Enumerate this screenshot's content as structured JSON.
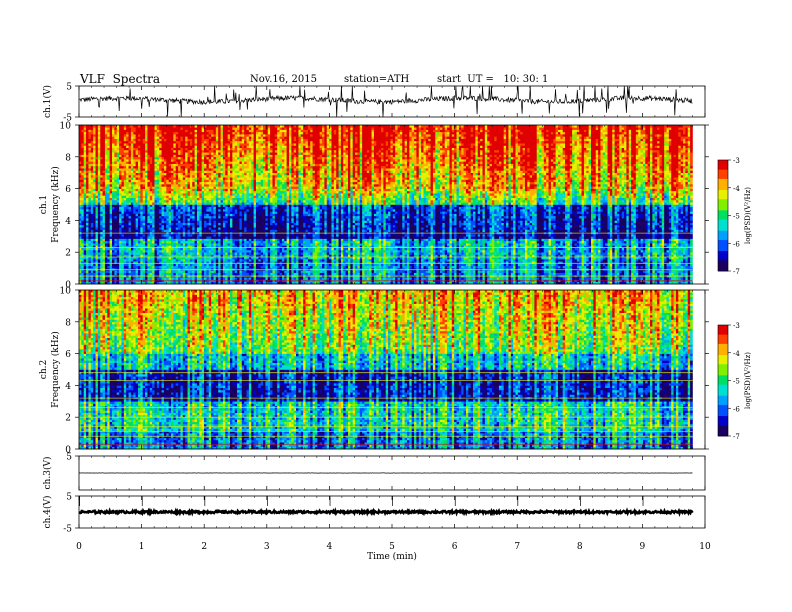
{
  "header": {
    "title": "VLF  Spectra",
    "date": "Nov.16, 2015",
    "station": "station=ATH",
    "start": "start  UT =   10: 30: 1"
  },
  "chart_data": [
    {
      "id": "ch1_waveform",
      "type": "line",
      "ylabel": "ch.1(V)",
      "ylim": [
        -5,
        5
      ],
      "yticks": [
        "5",
        "-5"
      ],
      "description_series": "noisy waveform around +0.5 V with spikes",
      "baseline": 0.5
    },
    {
      "id": "ch1_spectrogram",
      "type": "heatmap",
      "ylabel": "ch.1\nFrequency  (kHz)",
      "ylim": [
        0,
        10
      ],
      "yticks": [
        "0",
        "2",
        "4",
        "6",
        "8",
        "10"
      ],
      "xlim": [
        0,
        10
      ],
      "colorbar": {
        "label": "log(PSD)(V²/Hz)",
        "range": [
          -7,
          -3
        ],
        "ticks": [
          "-3",
          "-4",
          "-5",
          "-6",
          "-7"
        ]
      }
    },
    {
      "id": "ch2_spectrogram",
      "type": "heatmap",
      "ylabel": "ch.2\nFrequency  (kHz)",
      "ylim": [
        0,
        10
      ],
      "yticks": [
        "0",
        "2",
        "4",
        "6",
        "8",
        "10"
      ],
      "xlim": [
        0,
        10
      ],
      "colorbar": {
        "label": "log(PSD)(V²/Hz)",
        "range": [
          -7,
          -3
        ],
        "ticks": [
          "-3",
          "-4",
          "-5",
          "-6",
          "-7"
        ]
      }
    },
    {
      "id": "ch3_waveform",
      "type": "line",
      "ylabel": "ch.3(V)",
      "ylim": [
        -5,
        5
      ],
      "yticks": [
        "5"
      ],
      "baseline": 0
    },
    {
      "id": "ch4_waveform",
      "type": "line",
      "ylabel": "ch.4(V)",
      "ylim": [
        -5,
        5
      ],
      "yticks": [
        "5",
        "-5"
      ],
      "baseline": 0
    }
  ],
  "xaxis": {
    "label": "Time  (min)",
    "ticks": [
      "0",
      "1",
      "2",
      "3",
      "4",
      "5",
      "6",
      "7",
      "8",
      "9",
      "10"
    ],
    "range": [
      0,
      10
    ],
    "data_end": 9.8
  },
  "colors": {
    "scale": [
      "#1a0060",
      "#0000c8",
      "#0050ff",
      "#00a0ff",
      "#00e0d0",
      "#00e060",
      "#80f000",
      "#e8f000",
      "#ffb000",
      "#ff4000",
      "#e00000"
    ]
  }
}
